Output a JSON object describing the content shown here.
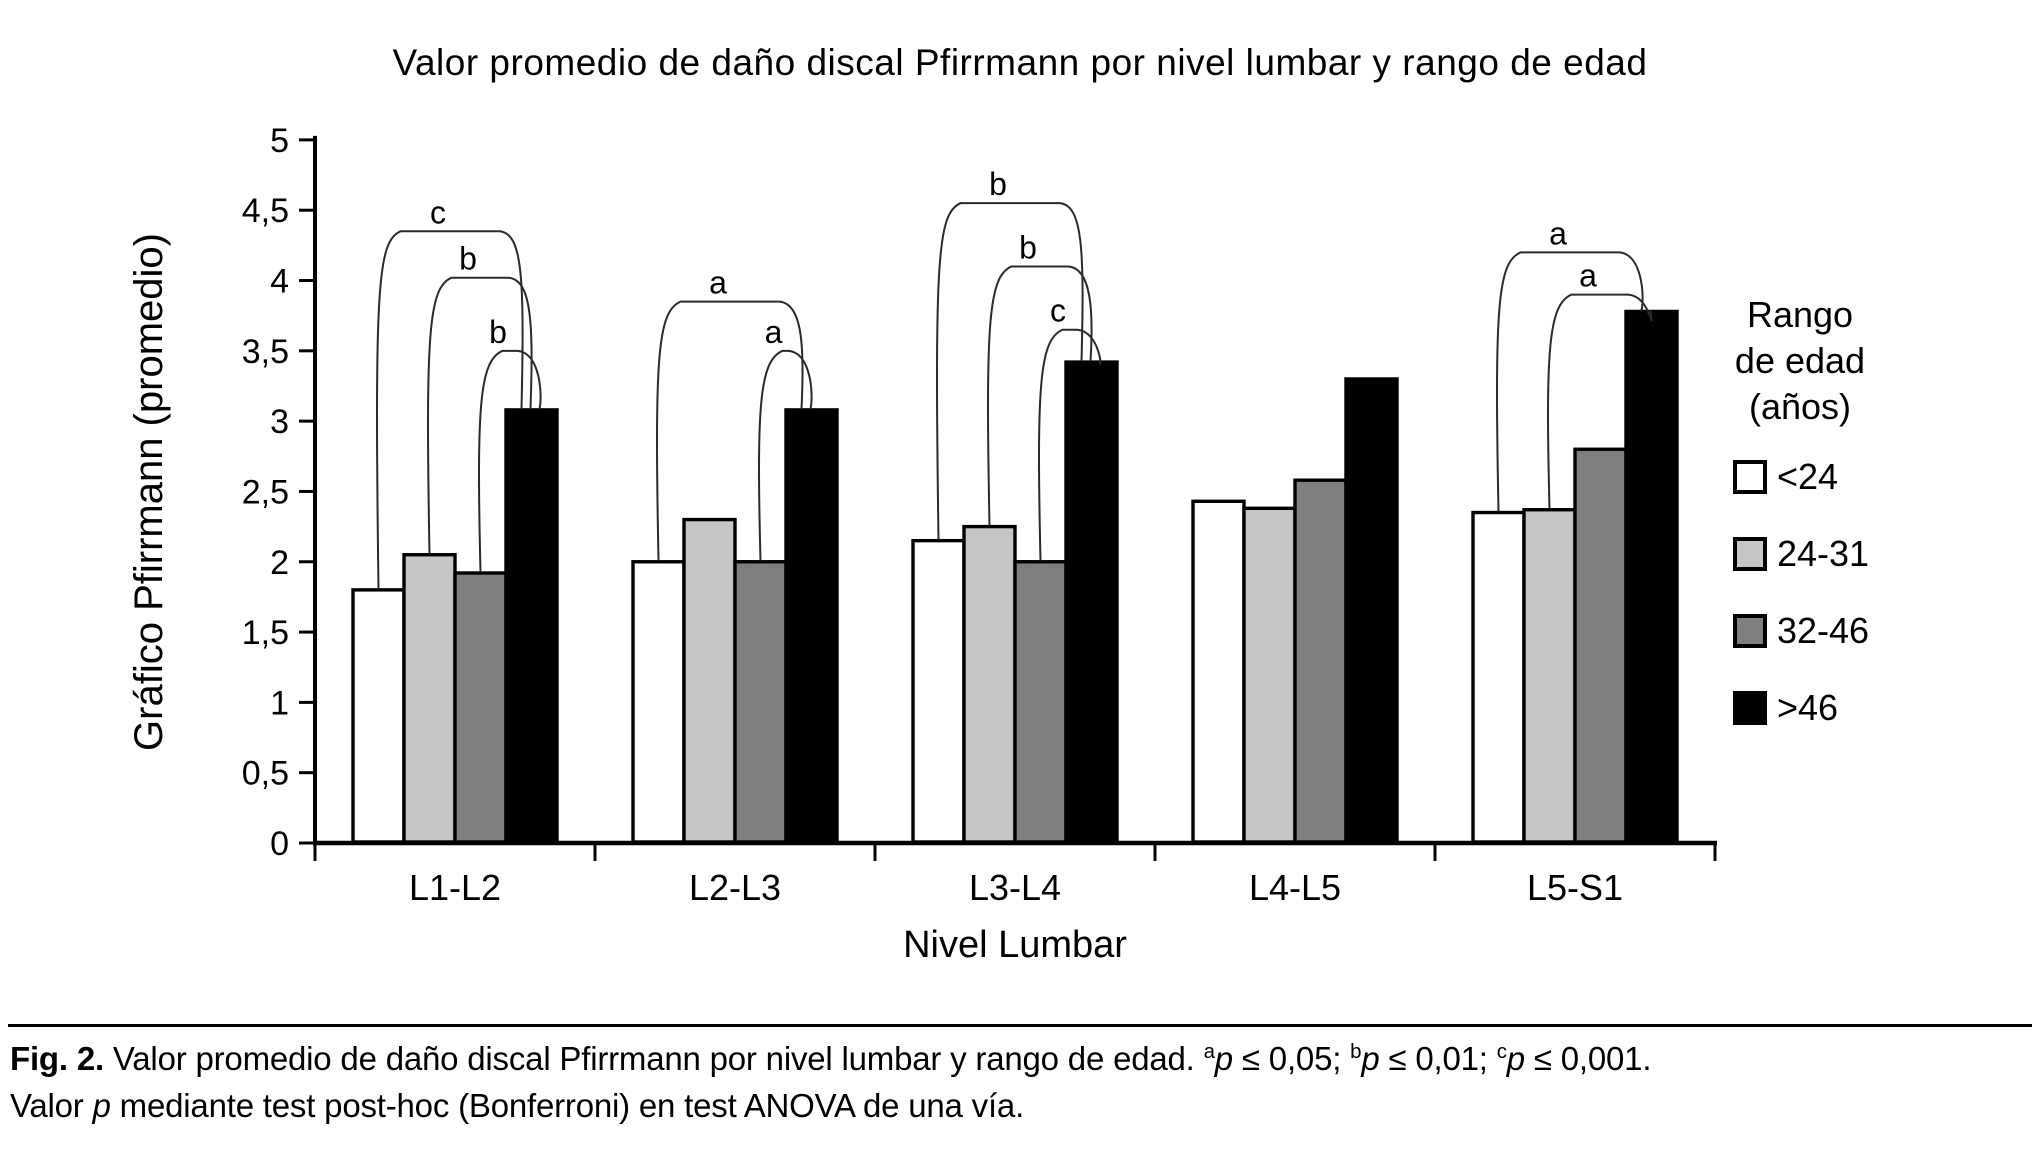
{
  "chart_data": {
    "type": "bar",
    "title": "Valor promedio de daño discal Pfirrmann por nivel lumbar y rango de edad",
    "xlabel": "Nivel Lumbar",
    "ylabel": "Gráfico Pfirrmann (promedio)",
    "ylim": [
      0,
      5
    ],
    "ytick_step": 0.5,
    "ytick_labels": [
      "0",
      "0,5",
      "1",
      "1,5",
      "2",
      "2,5",
      "3",
      "3,5",
      "4",
      "4,5",
      "5"
    ],
    "grid": false,
    "categories": [
      "L1-L2",
      "L2-L3",
      "L3-L4",
      "L4-L5",
      "L5-S1"
    ],
    "series": [
      {
        "name": "<24",
        "color": "#ffffff",
        "values": [
          1.8,
          2.0,
          2.15,
          2.43,
          2.35
        ]
      },
      {
        "name": "24-31",
        "color": "#c6c6c6",
        "values": [
          2.05,
          2.3,
          2.25,
          2.38,
          2.37
        ]
      },
      {
        "name": "32-46",
        "color": "#7f7f7f",
        "values": [
          1.92,
          2.0,
          2.0,
          2.58,
          2.8
        ]
      },
      {
        "name": ">46",
        "color": "#000000",
        "values": [
          3.08,
          3.08,
          3.42,
          3.3,
          3.78
        ]
      }
    ],
    "legend": {
      "position": "right",
      "title_lines": [
        "Rango",
        "de edad",
        "(años)"
      ]
    },
    "significance_brackets": [
      {
        "group": "L1-L2",
        "from": "<24",
        "to": ">46",
        "label": "c",
        "height": 4.35
      },
      {
        "group": "L1-L2",
        "from": "24-31",
        "to": ">46",
        "label": "b",
        "height": 4.02
      },
      {
        "group": "L1-L2",
        "from": "32-46",
        "to": ">46",
        "label": "b",
        "height": 3.5
      },
      {
        "group": "L2-L3",
        "from": "<24",
        "to": ">46",
        "label": "a",
        "height": 3.85
      },
      {
        "group": "L2-L3",
        "from": "32-46",
        "to": ">46",
        "label": "a",
        "height": 3.5
      },
      {
        "group": "L3-L4",
        "from": "<24",
        "to": ">46",
        "label": "b",
        "height": 4.55
      },
      {
        "group": "L3-L4",
        "from": "24-31",
        "to": ">46",
        "label": "b",
        "height": 4.1
      },
      {
        "group": "L3-L4",
        "from": "32-46",
        "to": ">46",
        "label": "c",
        "height": 3.65
      },
      {
        "group": "L5-S1",
        "from": "<24",
        "to": ">46",
        "label": "a",
        "height": 4.2
      },
      {
        "group": "L5-S1",
        "from": "24-31",
        "to": ">46",
        "label": "a",
        "height": 3.9
      }
    ]
  },
  "caption": {
    "line1": [
      {
        "t": "Fig. 2.",
        "style": "bold"
      },
      {
        "t": " Valor promedio de daño discal Pfirrmann por nivel lumbar y rango de edad. "
      },
      {
        "t": "a",
        "style": "sup"
      },
      {
        "t": "p",
        "style": "italic"
      },
      {
        "t": " ≤ 0,05; "
      },
      {
        "t": "b",
        "style": "sup"
      },
      {
        "t": "p",
        "style": "italic"
      },
      {
        "t": " ≤ 0,01; "
      },
      {
        "t": "c",
        "style": "sup"
      },
      {
        "t": "p",
        "style": "italic"
      },
      {
        "t": " ≤ 0,001."
      }
    ],
    "line2": [
      {
        "t": "Valor "
      },
      {
        "t": "p",
        "style": "italic"
      },
      {
        "t": " mediante test post-hoc (Bonferroni) en test ANOVA de una vía."
      }
    ]
  }
}
